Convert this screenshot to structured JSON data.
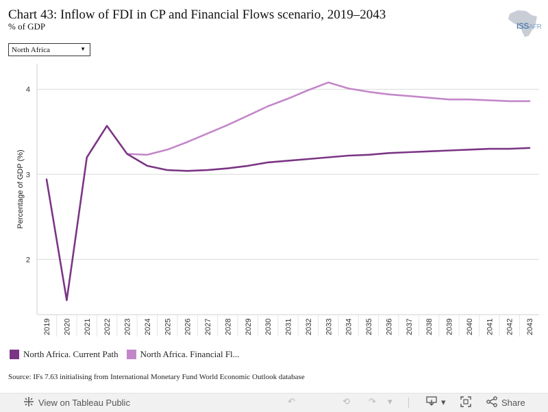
{
  "header": {
    "title": "Chart 43: Inflow of FDI in CP and Financial Flows scenario, 2019–2043",
    "subtitle": "% of GDP",
    "logo_text": "ISS",
    "logo_sub": "AFR"
  },
  "filter": {
    "selected": "North Africa"
  },
  "chart_data": {
    "type": "line",
    "ylabel": "Percentage of GDP (%)",
    "ylim": [
      1.35,
      4.3
    ],
    "yticks": [
      2,
      3,
      4
    ],
    "grid": true,
    "categories": [
      "2019",
      "2020",
      "2021",
      "2022",
      "2023",
      "2024",
      "2025",
      "2026",
      "2027",
      "2028",
      "2029",
      "2030",
      "2031",
      "2032",
      "2033",
      "2034",
      "2035",
      "2036",
      "2037",
      "2038",
      "2039",
      "2040",
      "2041",
      "2042",
      "2043"
    ],
    "series": [
      {
        "name": "North Africa. Current Path",
        "color": "#7b3585",
        "values": [
          2.94,
          1.52,
          3.2,
          3.57,
          3.24,
          3.1,
          3.05,
          3.04,
          3.05,
          3.07,
          3.1,
          3.14,
          3.16,
          3.18,
          3.2,
          3.22,
          3.23,
          3.25,
          3.26,
          3.27,
          3.28,
          3.29,
          3.3,
          3.3,
          3.31
        ]
      },
      {
        "name": "North Africa. Financial Fl...",
        "color": "#c387c9",
        "values": [
          null,
          null,
          null,
          null,
          3.24,
          3.23,
          3.29,
          3.38,
          3.48,
          3.58,
          3.69,
          3.8,
          3.89,
          3.99,
          4.08,
          4.01,
          3.97,
          3.94,
          3.92,
          3.9,
          3.88,
          3.88,
          3.87,
          3.86,
          3.86
        ]
      }
    ]
  },
  "source": "Source: IFs 7.63 initialising from International Monetary Fund World Economic Outlook database",
  "toolbar": {
    "view_label": "View on Tableau Public",
    "share_label": "Share"
  }
}
